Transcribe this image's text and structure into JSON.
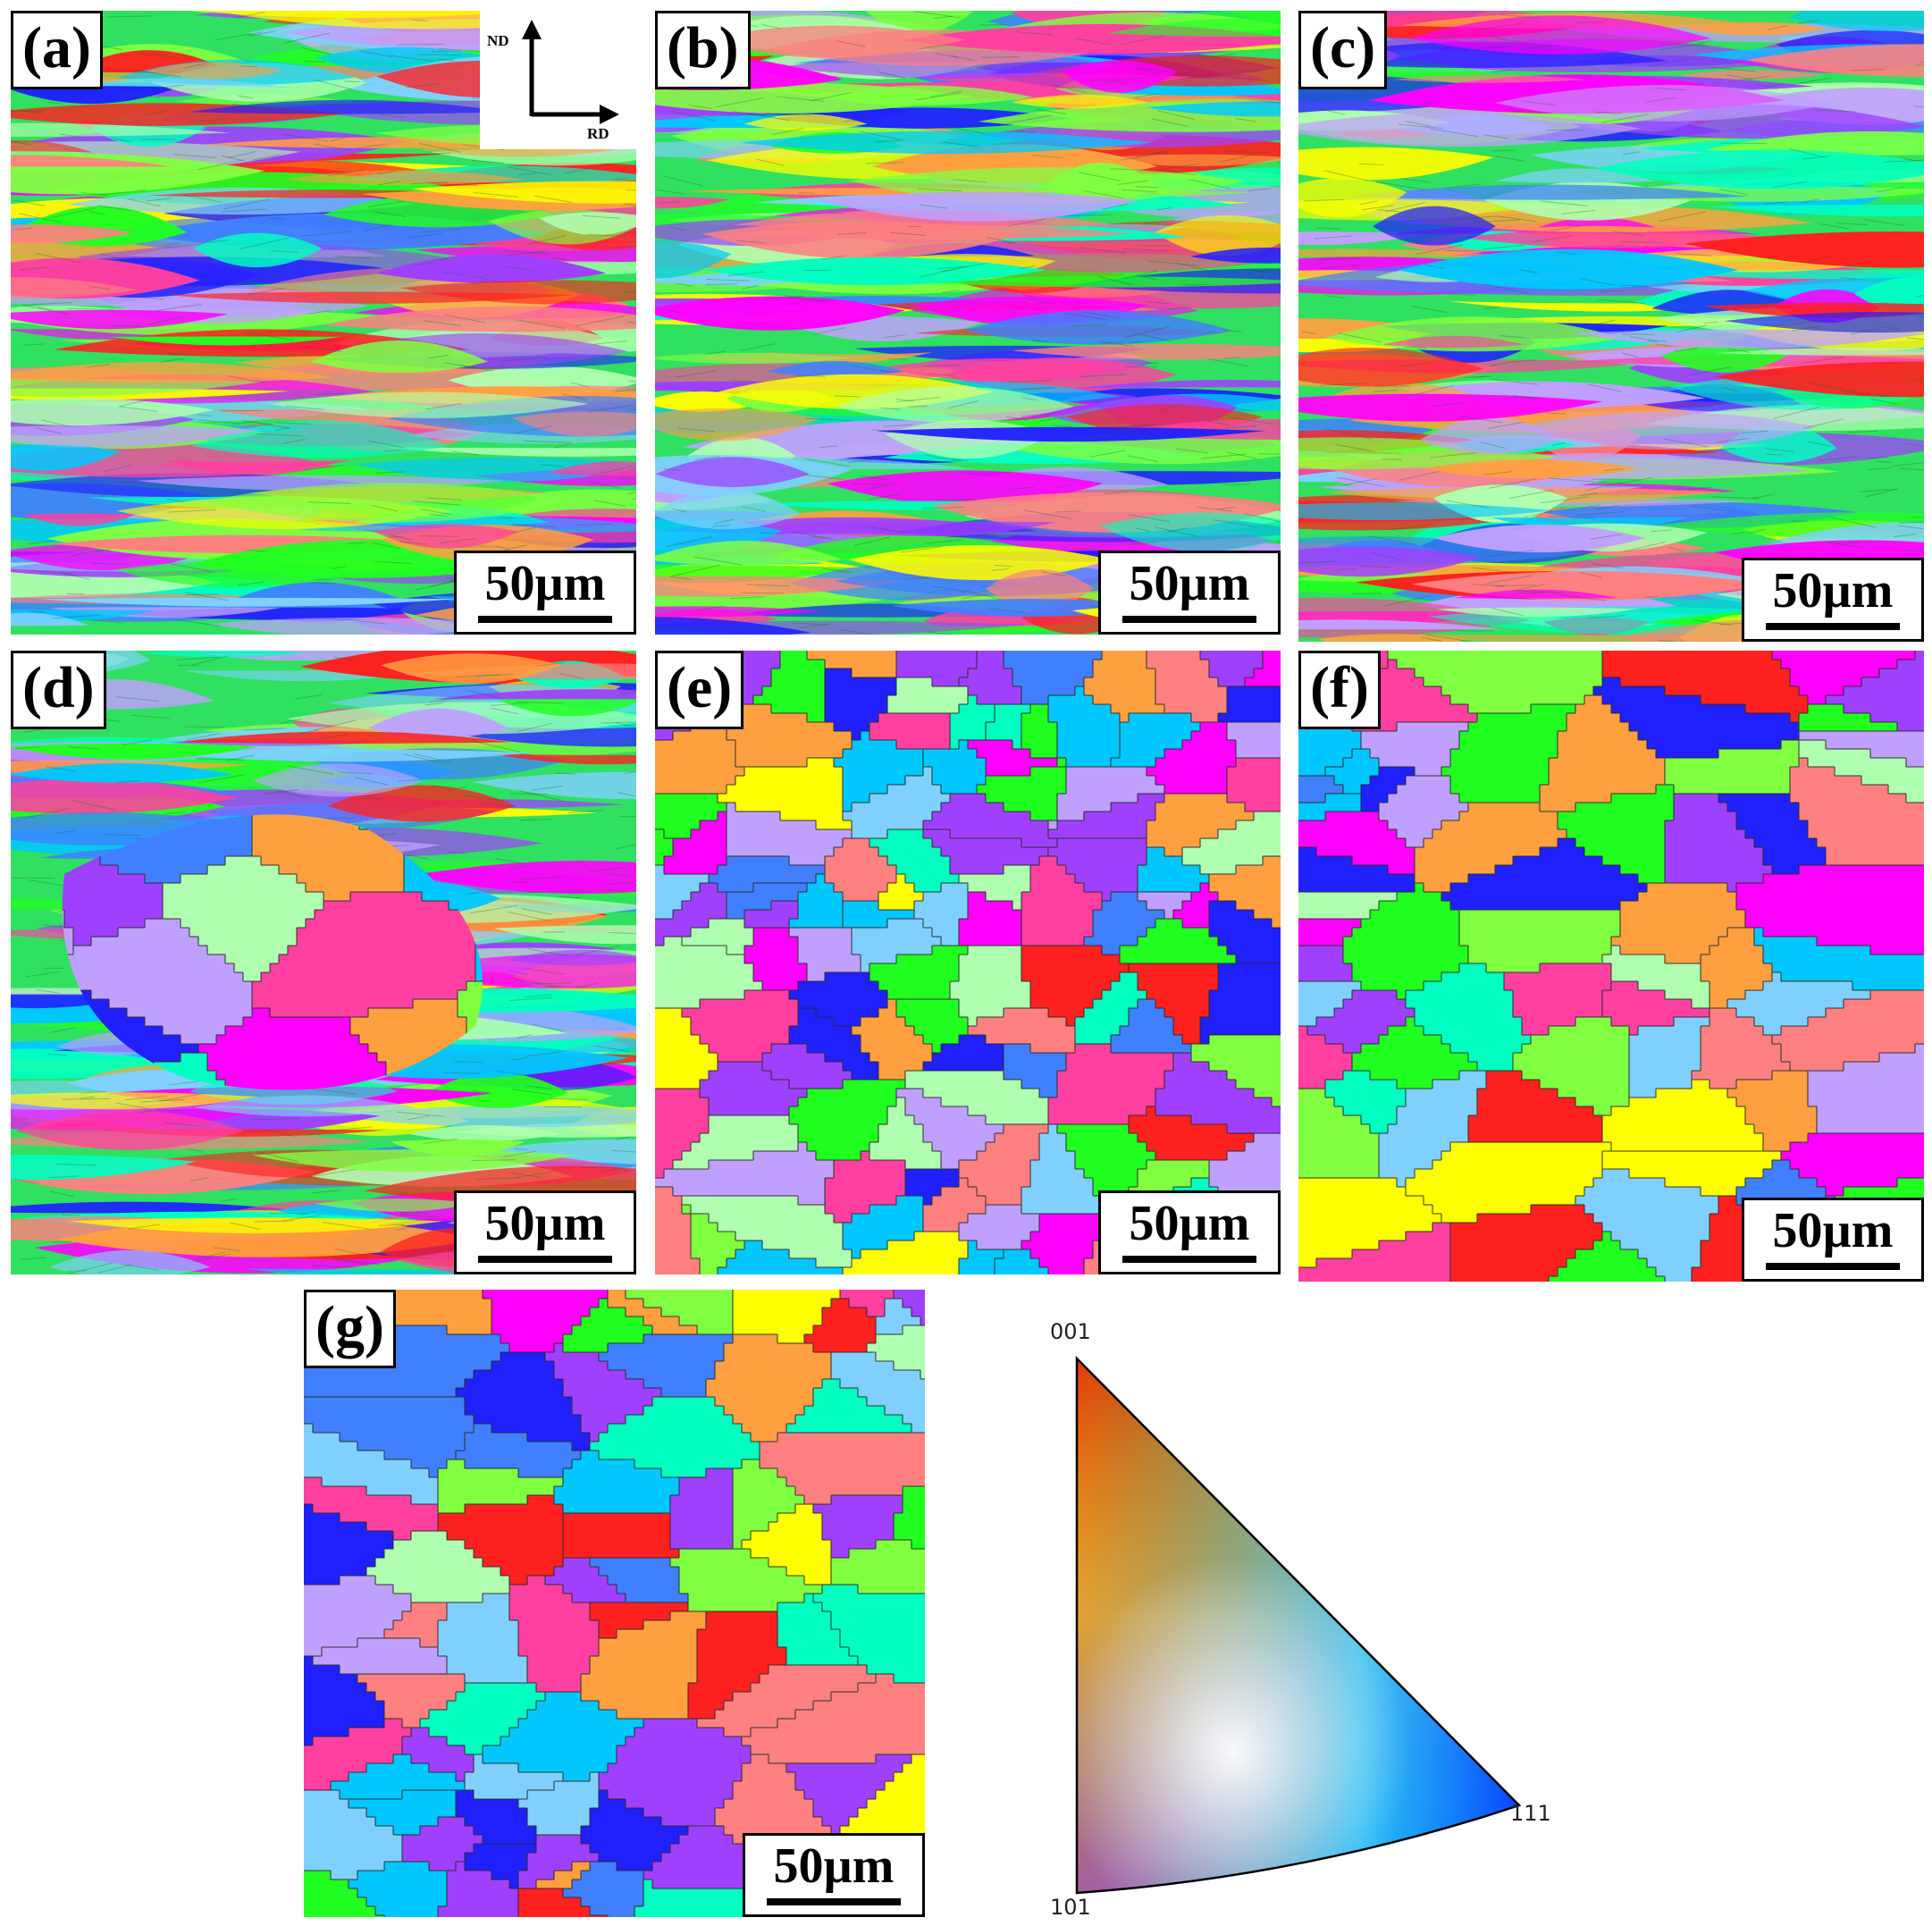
{
  "panels": [
    {
      "id": "a",
      "label": "(a)",
      "scale_label": "50µm",
      "style": "deformed"
    },
    {
      "id": "b",
      "label": "(b)",
      "scale_label": "50µm",
      "style": "deformed"
    },
    {
      "id": "c",
      "label": "(c)",
      "scale_label": "50µm",
      "style": "deformed"
    },
    {
      "id": "d",
      "label": "(d)",
      "scale_label": "50µm",
      "style": "partial"
    },
    {
      "id": "e",
      "label": "(e)",
      "scale_label": "50µm",
      "style": "grains"
    },
    {
      "id": "f",
      "label": "(f)",
      "scale_label": "50µm",
      "style": "grains"
    },
    {
      "id": "g",
      "label": "(g)",
      "scale_label": "50µm",
      "style": "grains"
    }
  ],
  "axes": {
    "vertical": "ND",
    "horizontal": "RD"
  },
  "ipf_key": {
    "corner_top": "001",
    "corner_bottom_left": "101",
    "corner_bottom_right": "111"
  },
  "colors": {
    "001": "#ff0000",
    "101": "#00ff00",
    "111": "#0000ff",
    "palette": [
      "#ff2020",
      "#ff40a0",
      "#ff00ff",
      "#a040ff",
      "#2020ff",
      "#4080ff",
      "#00c8ff",
      "#00ffc0",
      "#20ff20",
      "#80ff40",
      "#ffff00",
      "#ffa040",
      "#ff8080",
      "#c0a0ff",
      "#80d0ff",
      "#b0ffb0"
    ]
  }
}
